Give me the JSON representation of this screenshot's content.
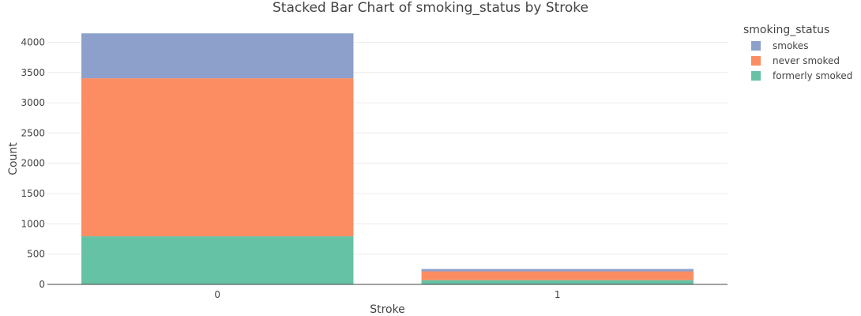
{
  "chart_data": {
    "type": "bar",
    "barmode": "stack",
    "title": "Stacked Bar Chart of smoking_status by Stroke",
    "xlabel": "Stroke",
    "ylabel": "Count",
    "categories": [
      "0",
      "1"
    ],
    "ylim": [
      0,
      4150
    ],
    "yticks": [
      0,
      500,
      1000,
      1500,
      2000,
      2500,
      3000,
      3500,
      4000
    ],
    "grid": true,
    "legend": {
      "title": "smoking_status",
      "placement": "right"
    },
    "series": [
      {
        "name": "formerly smoked",
        "color": "#66c2a5",
        "values": [
          795,
          70
        ]
      },
      {
        "name": "never smoked",
        "color": "#fc8d62",
        "values": [
          2610,
          145
        ]
      },
      {
        "name": "smokes",
        "color": "#8da0cb",
        "values": [
          742,
          40
        ]
      }
    ],
    "legend_order": [
      "smokes",
      "never smoked",
      "formerly smoked"
    ]
  }
}
